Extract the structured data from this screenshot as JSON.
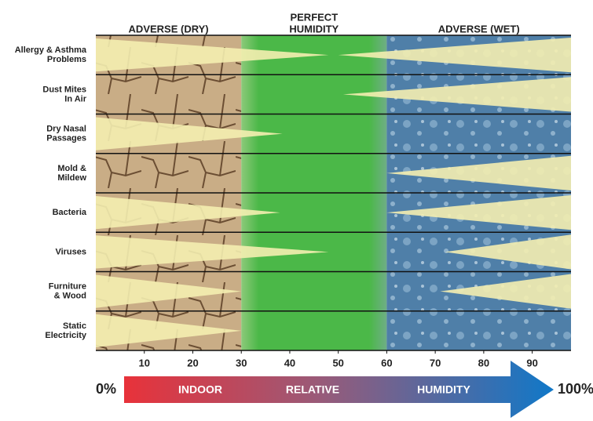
{
  "chart_data": {
    "type": "wedge-range",
    "zones": [
      {
        "lines": [
          "ADVERSE (DRY)"
        ],
        "from": 0,
        "to": 30
      },
      {
        "lines": [
          "PERFECT",
          "HUMIDITY"
        ],
        "from": 30,
        "to": 60
      },
      {
        "lines": [
          "ADVERSE (WET)"
        ],
        "from": 60,
        "to": 98
      }
    ],
    "rows": [
      {
        "lines": [
          "Allergy & Asthma",
          "Problems"
        ],
        "left": 48,
        "right": 50
      },
      {
        "lines": [
          "Dust Mites",
          "In Air"
        ],
        "left": null,
        "right": 51
      },
      {
        "lines": [
          "Dry Nasal",
          "Passages"
        ],
        "left": 38.5,
        "right": null
      },
      {
        "lines": [
          "Mold &",
          "Mildew"
        ],
        "left": null,
        "right": 60
      },
      {
        "lines": [
          "Bacteria"
        ],
        "left": 38,
        "right": 60
      },
      {
        "lines": [
          "Viruses"
        ],
        "left": 48,
        "right": 72
      },
      {
        "lines": [
          "Furniture",
          "& Wood"
        ],
        "left": 30,
        "right": 71
      },
      {
        "lines": [
          "Static",
          "Electricity"
        ],
        "left": 30,
        "right": null
      }
    ],
    "xlim": [
      0,
      98
    ],
    "xticks": [
      10,
      20,
      30,
      40,
      50,
      60,
      70,
      80,
      90
    ],
    "wedge_color": "#f4eeb0",
    "arrow": {
      "start": "0%",
      "words": [
        "INDOOR",
        "RELATIVE",
        "HUMIDITY"
      ],
      "end": "100%"
    }
  }
}
